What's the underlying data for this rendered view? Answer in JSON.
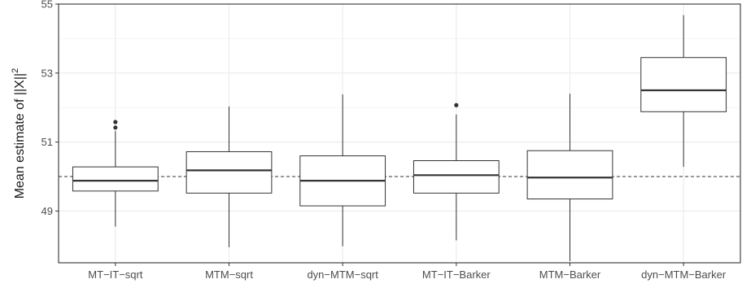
{
  "chart_data": {
    "type": "boxplot",
    "title": "",
    "xlabel": "",
    "ylabel": "Mean estimate of ||X||",
    "ylabel_superscript": "2",
    "ylim": [
      47.5,
      55.0
    ],
    "y_ticks": [
      49,
      51,
      53,
      55
    ],
    "grid": true,
    "reference_line": {
      "y": 50.0,
      "style": "dashed"
    },
    "categories": [
      "MT−IT−sqrt",
      "MTM−sqrt",
      "dyn−MTM−sqrt",
      "MT−IT−Barker",
      "MTM−Barker",
      "dyn−MTM−Barker"
    ],
    "boxes": [
      {
        "whisker_low": 48.55,
        "q1": 49.58,
        "median": 49.88,
        "q3": 50.28,
        "whisker_high": 51.32,
        "outliers": [
          51.42,
          51.58
        ]
      },
      {
        "whisker_low": 47.95,
        "q1": 49.52,
        "median": 50.18,
        "q3": 50.72,
        "whisker_high": 52.03,
        "outliers": []
      },
      {
        "whisker_low": 47.98,
        "q1": 49.15,
        "median": 49.88,
        "q3": 50.6,
        "whisker_high": 52.38,
        "outliers": []
      },
      {
        "whisker_low": 48.15,
        "q1": 49.52,
        "median": 50.04,
        "q3": 50.46,
        "whisker_high": 51.8,
        "outliers": [
          52.07
        ]
      },
      {
        "whisker_low": 47.55,
        "q1": 49.35,
        "median": 49.97,
        "q3": 50.75,
        "whisker_high": 52.4,
        "outliers": []
      },
      {
        "whisker_low": 50.28,
        "q1": 51.88,
        "median": 52.5,
        "q3": 53.45,
        "whisker_high": 54.68,
        "outliers": []
      }
    ]
  }
}
